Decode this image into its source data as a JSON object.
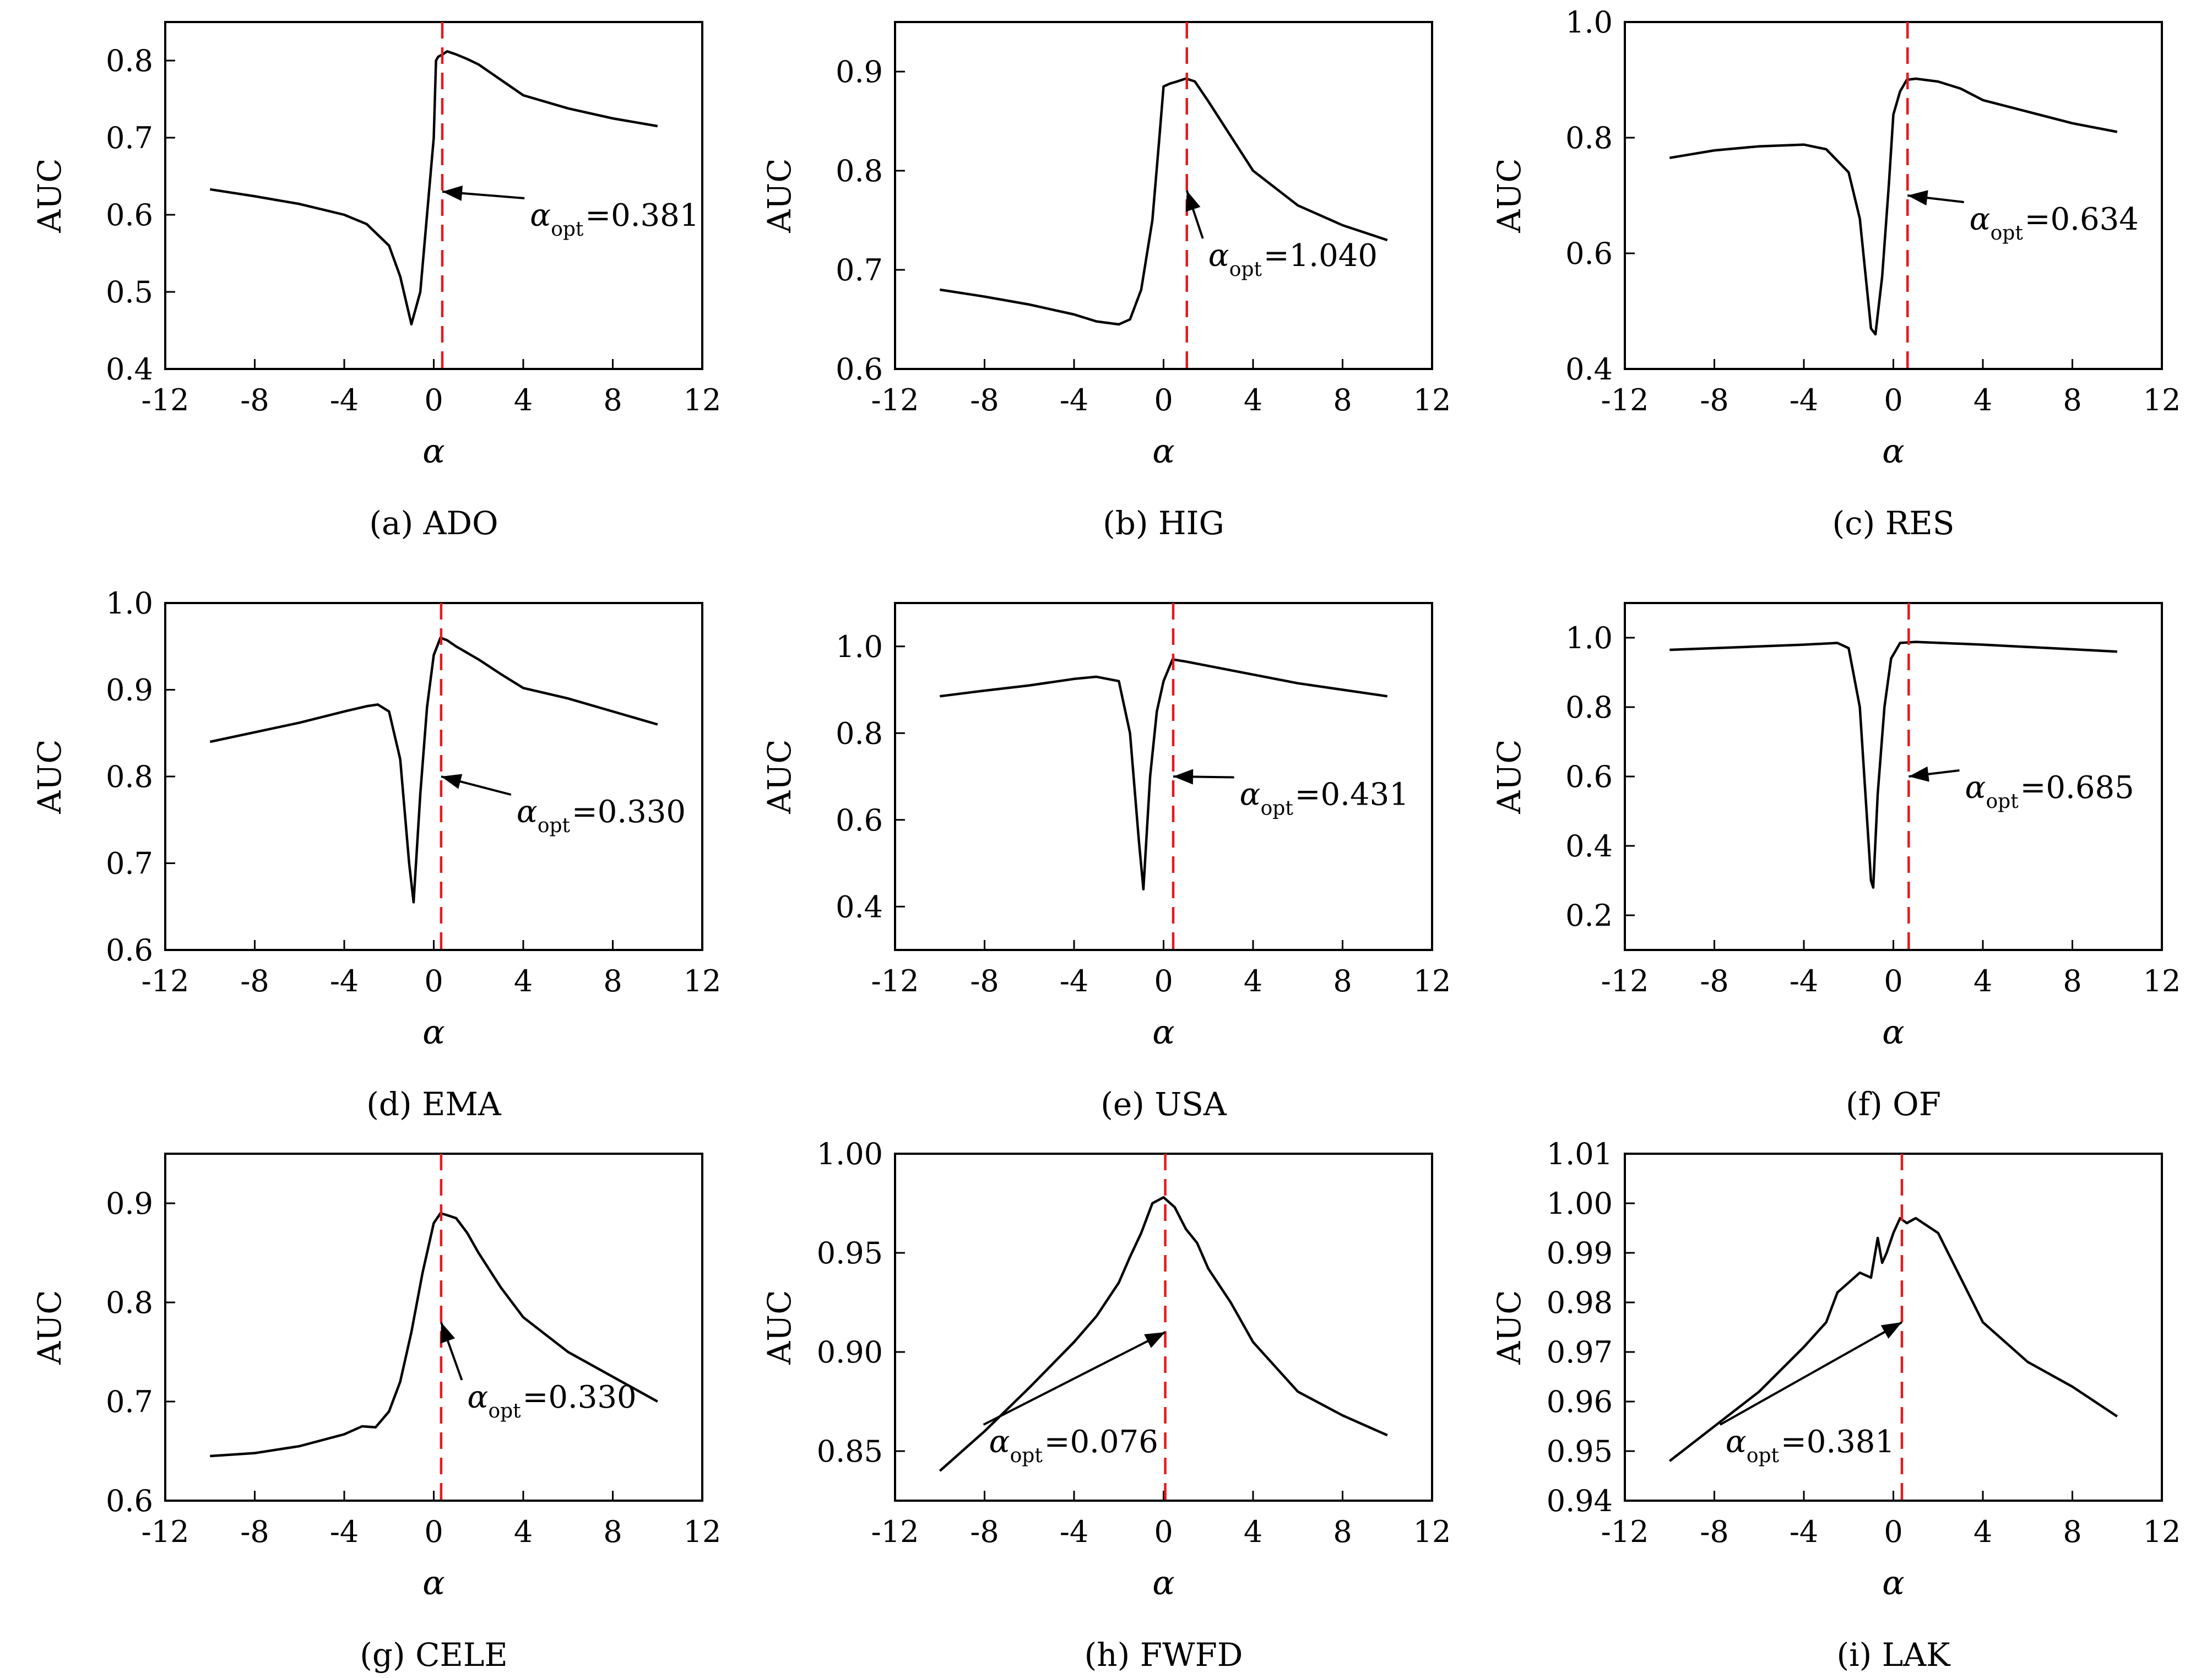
{
  "figure": {
    "panels": [
      {
        "caption": "(a) ADO"
      },
      {
        "caption": "(b) HIG"
      },
      {
        "caption": "(c) RES"
      },
      {
        "caption": "(d) EMA"
      },
      {
        "caption": "(e) USA"
      },
      {
        "caption": "(f) OF"
      },
      {
        "caption": "(g) CELE"
      },
      {
        "caption": "(h) FWFD"
      },
      {
        "caption": "(i) LAK"
      }
    ]
  },
  "chart_data": [
    {
      "type": "line",
      "caption": "(a) ADO",
      "xlabel": "α",
      "ylabel": "AUC",
      "xlim": [
        -12,
        12
      ],
      "ylim": [
        0.4,
        0.85
      ],
      "xticks": [
        -12,
        -8,
        -4,
        0,
        4,
        8,
        12
      ],
      "yticks": [
        0.4,
        0.5,
        0.6,
        0.7,
        0.8
      ],
      "ytick_labels": [
        "0.4",
        "0.5",
        "0.6",
        "0.7",
        "0.8"
      ],
      "alpha_opt": 0.381,
      "annotation": {
        "text_sub": "opt",
        "value": "=0.381",
        "target_y": 0.63,
        "text_at": [
          4.3,
          0.6
        ]
      },
      "series": [
        {
          "x": [
            -10,
            -8,
            -6,
            -4,
            -3,
            -2,
            -1.5,
            -1,
            -0.6,
            -0.3,
            0,
            0.1,
            0.2,
            0.4,
            0.6,
            1,
            1.5,
            2,
            3,
            4,
            6,
            8,
            10
          ],
          "y": [
            0.633,
            0.624,
            0.614,
            0.6,
            0.588,
            0.56,
            0.52,
            0.458,
            0.5,
            0.6,
            0.7,
            0.8,
            0.805,
            0.808,
            0.812,
            0.808,
            0.802,
            0.795,
            0.775,
            0.755,
            0.738,
            0.725,
            0.715
          ]
        }
      ]
    },
    {
      "type": "line",
      "caption": "(b) HIG",
      "xlabel": "α",
      "ylabel": "AUC",
      "xlim": [
        -12,
        12
      ],
      "ylim": [
        0.6,
        0.95
      ],
      "xticks": [
        -12,
        -8,
        -4,
        0,
        4,
        8,
        12
      ],
      "yticks": [
        0.6,
        0.7,
        0.8,
        0.9
      ],
      "ytick_labels": [
        "0.6",
        "0.7",
        "0.8",
        "0.9"
      ],
      "alpha_opt": 1.04,
      "annotation": {
        "text_sub": "opt",
        "value": "=1.040",
        "target_y": 0.78,
        "text_at": [
          2.0,
          0.715
        ]
      },
      "series": [
        {
          "x": [
            -10,
            -8,
            -6,
            -4,
            -3,
            -2,
            -1.5,
            -1,
            -0.5,
            -0.2,
            0,
            0.3,
            0.6,
            1,
            1.4,
            2,
            3,
            4,
            6,
            8,
            10
          ],
          "y": [
            0.68,
            0.673,
            0.665,
            0.655,
            0.648,
            0.645,
            0.65,
            0.68,
            0.75,
            0.83,
            0.885,
            0.888,
            0.89,
            0.893,
            0.89,
            0.87,
            0.835,
            0.8,
            0.765,
            0.745,
            0.73
          ]
        }
      ]
    },
    {
      "type": "line",
      "caption": "(c) RES",
      "xlabel": "α",
      "ylabel": "AUC",
      "xlim": [
        -12,
        12
      ],
      "ylim": [
        0.4,
        1.0
      ],
      "xticks": [
        -12,
        -8,
        -4,
        0,
        4,
        8,
        12
      ],
      "yticks": [
        0.4,
        0.6,
        0.8,
        1.0
      ],
      "ytick_labels": [
        "0.4",
        "0.6",
        "0.8",
        "1.0"
      ],
      "alpha_opt": 0.634,
      "annotation": {
        "text_sub": "opt",
        "value": "=0.634",
        "target_y": 0.7,
        "text_at": [
          3.4,
          0.66
        ]
      },
      "series": [
        {
          "x": [
            -10,
            -8,
            -6,
            -4,
            -3,
            -2,
            -1.5,
            -1,
            -0.8,
            -0.5,
            -0.2,
            0,
            0.3,
            0.6,
            1,
            2,
            3,
            4,
            6,
            8,
            10
          ],
          "y": [
            0.765,
            0.778,
            0.785,
            0.788,
            0.78,
            0.74,
            0.66,
            0.47,
            0.46,
            0.56,
            0.72,
            0.84,
            0.88,
            0.9,
            0.902,
            0.897,
            0.885,
            0.865,
            0.845,
            0.825,
            0.81
          ]
        }
      ]
    },
    {
      "type": "line",
      "caption": "(d) EMA",
      "xlabel": "α",
      "ylabel": "AUC",
      "xlim": [
        -12,
        12
      ],
      "ylim": [
        0.6,
        1.0
      ],
      "xticks": [
        -12,
        -8,
        -4,
        0,
        4,
        8,
        12
      ],
      "yticks": [
        0.6,
        0.7,
        0.8,
        0.9,
        1.0
      ],
      "ytick_labels": [
        "0.6",
        "0.7",
        "0.8",
        "0.9",
        "1.0"
      ],
      "alpha_opt": 0.33,
      "annotation": {
        "text_sub": "opt",
        "value": "=0.330",
        "target_y": 0.8,
        "text_at": [
          3.7,
          0.76
        ]
      },
      "series": [
        {
          "x": [
            -10,
            -8,
            -6,
            -4,
            -3,
            -2.5,
            -2,
            -1.5,
            -1.1,
            -0.9,
            -0.6,
            -0.3,
            0,
            0.3,
            0.6,
            1,
            2,
            3,
            4,
            6,
            8,
            10
          ],
          "y": [
            0.84,
            0.851,
            0.862,
            0.875,
            0.881,
            0.883,
            0.875,
            0.82,
            0.7,
            0.655,
            0.78,
            0.88,
            0.94,
            0.96,
            0.957,
            0.95,
            0.935,
            0.918,
            0.902,
            0.89,
            0.875,
            0.86
          ]
        }
      ]
    },
    {
      "type": "line",
      "caption": "(e) USA",
      "xlabel": "α",
      "ylabel": "AUC",
      "xlim": [
        -12,
        12
      ],
      "ylim": [
        0.3,
        1.1
      ],
      "xticks": [
        -12,
        -8,
        -4,
        0,
        4,
        8,
        12
      ],
      "yticks": [
        0.4,
        0.6,
        0.8,
        1.0
      ],
      "ytick_labels": [
        "0.4",
        "0.6",
        "0.8",
        "1.0"
      ],
      "alpha_opt": 0.431,
      "annotation": {
        "text_sub": "opt",
        "value": "=0.431",
        "target_y": 0.7,
        "text_at": [
          3.4,
          0.66
        ]
      },
      "series": [
        {
          "x": [
            -10,
            -8,
            -6,
            -4,
            -3,
            -2,
            -1.5,
            -1.1,
            -0.9,
            -0.6,
            -0.3,
            0,
            0.4,
            1,
            2,
            4,
            6,
            8,
            10
          ],
          "y": [
            0.885,
            0.898,
            0.91,
            0.925,
            0.93,
            0.92,
            0.8,
            0.55,
            0.44,
            0.7,
            0.85,
            0.92,
            0.97,
            0.965,
            0.955,
            0.935,
            0.915,
            0.9,
            0.885
          ]
        }
      ]
    },
    {
      "type": "line",
      "caption": "(f) OF",
      "xlabel": "α",
      "ylabel": "AUC",
      "xlim": [
        -12,
        12
      ],
      "ylim": [
        0.1,
        1.1
      ],
      "xticks": [
        -12,
        -8,
        -4,
        0,
        4,
        8,
        12
      ],
      "yticks": [
        0.2,
        0.4,
        0.6,
        0.8,
        1.0
      ],
      "ytick_labels": [
        "0.2",
        "0.4",
        "0.6",
        "0.8",
        "1.0"
      ],
      "alpha_opt": 0.685,
      "annotation": {
        "text_sub": "opt",
        "value": "=0.685",
        "target_y": 0.6,
        "text_at": [
          3.2,
          0.57
        ]
      },
      "series": [
        {
          "x": [
            -10,
            -6,
            -4,
            -2.5,
            -2,
            -1.5,
            -1.2,
            -1.0,
            -0.9,
            -0.7,
            -0.4,
            -0.1,
            0.3,
            1,
            4,
            7,
            10
          ],
          "y": [
            0.965,
            0.975,
            0.98,
            0.985,
            0.97,
            0.8,
            0.5,
            0.3,
            0.28,
            0.55,
            0.8,
            0.94,
            0.985,
            0.988,
            0.98,
            0.97,
            0.96
          ]
        }
      ]
    },
    {
      "type": "line",
      "caption": "(g) CELE",
      "xlabel": "α",
      "ylabel": "AUC",
      "xlim": [
        -12,
        12
      ],
      "ylim": [
        0.6,
        0.95
      ],
      "xticks": [
        -12,
        -8,
        -4,
        0,
        4,
        8,
        12
      ],
      "yticks": [
        0.6,
        0.7,
        0.8,
        0.9
      ],
      "ytick_labels": [
        "0.6",
        "0.7",
        "0.8",
        "0.9"
      ],
      "alpha_opt": 0.33,
      "annotation": {
        "text_sub": "opt",
        "value": "=0.330",
        "target_y": 0.78,
        "text_at": [
          1.5,
          0.705
        ]
      },
      "series": [
        {
          "x": [
            -10,
            -8,
            -6,
            -4,
            -3.2,
            -2.6,
            -2,
            -1.5,
            -1,
            -0.5,
            0,
            0.3,
            0.6,
            1,
            1.5,
            2,
            3,
            4,
            6,
            8,
            10
          ],
          "y": [
            0.645,
            0.648,
            0.655,
            0.667,
            0.675,
            0.674,
            0.69,
            0.72,
            0.77,
            0.83,
            0.88,
            0.89,
            0.888,
            0.885,
            0.87,
            0.85,
            0.815,
            0.785,
            0.75,
            0.725,
            0.7
          ]
        }
      ]
    },
    {
      "type": "line",
      "caption": "(h) FWFD",
      "xlabel": "α",
      "ylabel": "AUC",
      "xlim": [
        -12,
        12
      ],
      "ylim": [
        0.825,
        1.0
      ],
      "xticks": [
        -12,
        -8,
        -4,
        0,
        4,
        8,
        12
      ],
      "yticks": [
        0.85,
        0.9,
        0.95,
        1.0
      ],
      "ytick_labels": [
        "0.85",
        "0.90",
        "0.95",
        "1.00"
      ],
      "alpha_opt": 0.076,
      "annotation": {
        "text_sub": "opt",
        "value": "=0.076",
        "target_y": 0.91,
        "text_at": [
          -7.8,
          0.855
        ]
      },
      "series": [
        {
          "x": [
            -10,
            -8,
            -6,
            -4,
            -3,
            -2,
            -1.5,
            -1,
            -0.5,
            0,
            0.5,
            1,
            1.5,
            2,
            3,
            4,
            6,
            8,
            10
          ],
          "y": [
            0.84,
            0.86,
            0.882,
            0.905,
            0.918,
            0.935,
            0.948,
            0.96,
            0.975,
            0.978,
            0.973,
            0.962,
            0.955,
            0.942,
            0.925,
            0.905,
            0.88,
            0.868,
            0.858
          ]
        }
      ]
    },
    {
      "type": "line",
      "caption": "(i) LAK",
      "xlabel": "α",
      "ylabel": "AUC",
      "xlim": [
        -12,
        12
      ],
      "ylim": [
        0.94,
        1.01
      ],
      "xticks": [
        -12,
        -8,
        -4,
        0,
        4,
        8,
        12
      ],
      "yticks": [
        0.94,
        0.95,
        0.96,
        0.97,
        0.98,
        0.99,
        1.0,
        1.01
      ],
      "ytick_labels": [
        "0.94",
        "0.95",
        "0.96",
        "0.97",
        "0.98",
        "0.99",
        "1.00",
        "1.01"
      ],
      "alpha_opt": 0.381,
      "annotation": {
        "text_sub": "opt",
        "value": "=0.381",
        "target_y": 0.976,
        "text_at": [
          -7.5,
          0.952
        ]
      },
      "series": [
        {
          "x": [
            -10,
            -8,
            -6,
            -4,
            -3,
            -2.5,
            -2,
            -1.5,
            -1,
            -0.7,
            -0.5,
            -0.3,
            0,
            0.3,
            0.6,
            1,
            2,
            3,
            4,
            6,
            8,
            10
          ],
          "y": [
            0.948,
            0.955,
            0.962,
            0.971,
            0.976,
            0.982,
            0.984,
            0.986,
            0.985,
            0.993,
            0.988,
            0.99,
            0.994,
            0.997,
            0.996,
            0.997,
            0.994,
            0.985,
            0.976,
            0.968,
            0.963,
            0.957
          ]
        }
      ]
    }
  ]
}
